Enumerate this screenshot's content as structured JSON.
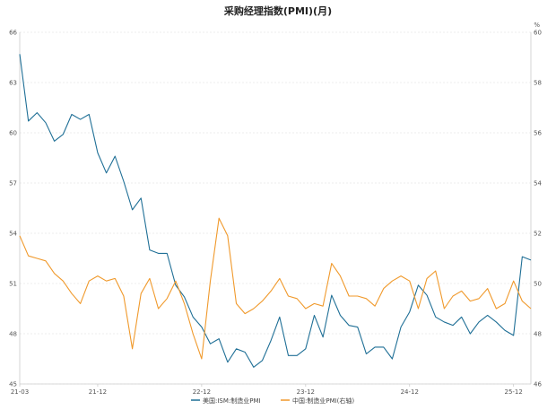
{
  "chart_data": {
    "type": "line",
    "title": "采购经理指数(PMI)(月)",
    "right_unit": "%",
    "x_tick_labels": [
      "21-03",
      "21-12",
      "22-12",
      "23-12",
      "24-12",
      "25-12"
    ],
    "x_tick_index": [
      0,
      9,
      21,
      33,
      45,
      57
    ],
    "left_axis": {
      "ylim": [
        45,
        66
      ],
      "ticks": [
        45,
        48,
        51,
        54,
        57,
        60,
        63,
        66
      ]
    },
    "right_axis": {
      "ylim": [
        46,
        60
      ],
      "ticks": [
        46,
        48,
        50,
        52,
        54,
        56,
        58,
        60
      ]
    },
    "grid": true,
    "legend_position": "bottom",
    "colors": {
      "series_1": "#1f6f96",
      "series_2": "#f0992b",
      "grid": "#d9d9d9",
      "axis": "#cccccc"
    },
    "series": [
      {
        "name": "美国:ISM:制造业PMI",
        "axis": "left",
        "values": [
          64.7,
          60.7,
          61.2,
          60.6,
          59.5,
          59.9,
          61.1,
          60.8,
          61.1,
          58.8,
          57.6,
          58.6,
          57.1,
          55.4,
          56.1,
          53.0,
          52.8,
          52.8,
          50.9,
          50.2,
          49.0,
          48.4,
          47.4,
          47.7,
          46.3,
          47.1,
          46.9,
          46.0,
          46.4,
          47.6,
          49.0,
          46.7,
          46.7,
          47.1,
          49.1,
          47.8,
          50.3,
          49.1,
          48.5,
          48.4,
          46.8,
          47.2,
          47.2,
          46.5,
          48.4,
          49.3,
          50.9,
          50.3,
          49.0,
          48.7,
          48.5,
          49.0,
          48.0,
          48.7,
          49.1,
          48.7,
          48.2,
          47.9,
          52.6,
          52.4
        ],
        "color": "#1f6f96"
      },
      {
        "name": "中国:制造业PMI(右轴)",
        "axis": "right",
        "values": [
          51.9,
          51.1,
          51.0,
          50.9,
          50.4,
          50.1,
          49.6,
          49.2,
          50.1,
          50.3,
          50.1,
          50.2,
          49.5,
          47.4,
          49.6,
          50.2,
          49.0,
          49.4,
          50.1,
          49.2,
          48.0,
          47.0,
          50.1,
          52.6,
          51.9,
          49.2,
          48.8,
          49.0,
          49.3,
          49.7,
          50.2,
          49.5,
          49.4,
          49.0,
          49.2,
          49.1,
          50.8,
          50.3,
          49.5,
          49.5,
          49.4,
          49.1,
          49.8,
          50.1,
          50.3,
          50.1,
          49.0,
          50.2,
          50.5,
          49.0,
          49.5,
          49.7,
          49.3,
          49.4,
          49.8,
          49.0,
          49.2,
          50.1,
          49.3,
          49.0
        ],
        "color": "#f0992b"
      }
    ]
  }
}
